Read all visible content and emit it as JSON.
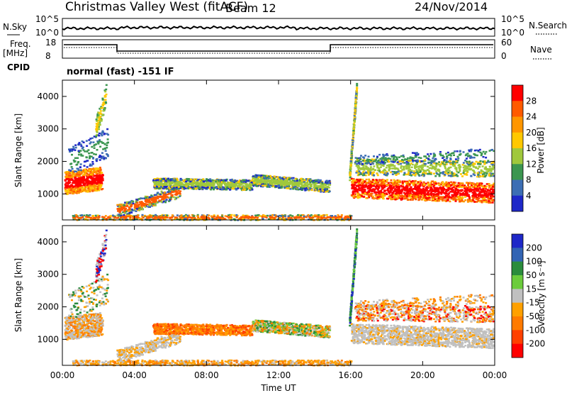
{
  "header": {
    "station": "Christmas Valley West (fitACF)",
    "beam": "Beam 12",
    "date": "24/Nov/2014"
  },
  "top_panels": {
    "nsky_label": "N.Sky",
    "nsky_ticks": [
      "10^5",
      "10^0"
    ],
    "nsearch_label": "N.Search",
    "nsearch_ticks": [
      "10^5",
      "10^0"
    ],
    "freq_label_1": "Freq.",
    "freq_label_2": "[MHz]",
    "freq_ticks": [
      "18",
      "8"
    ],
    "nave_label": "Nave",
    "nave_ticks": [
      "60",
      "0"
    ],
    "cpid_label": "CPID",
    "cpid_text": "normal (fast) -151 IF"
  },
  "chart_data": [
    {
      "type": "heatmap",
      "panel": "power",
      "ylabel": "Slant Range [km]",
      "xlabel": "Time UT",
      "yticks": [
        "1000",
        "2000",
        "3000",
        "4000"
      ],
      "xticks": [
        "00:00",
        "04:00",
        "08:00",
        "12:00",
        "16:00",
        "20:00",
        "00:00"
      ],
      "ylim": [
        200,
        4500
      ],
      "xlim": [
        0,
        24
      ],
      "colorbar_label": "Power [dB]",
      "colorbar_ticks": [
        "28",
        "24",
        "20",
        "16",
        "12",
        "8",
        "4"
      ]
    },
    {
      "type": "heatmap",
      "panel": "velocity",
      "ylabel": "Slant Range [km]",
      "xlabel": "Time UT",
      "yticks": [
        "1000",
        "2000",
        "3000",
        "4000"
      ],
      "xticks": [
        "00:00",
        "04:00",
        "08:00",
        "12:00",
        "16:00",
        "20:00",
        "00:00"
      ],
      "ylim": [
        200,
        4500
      ],
      "xlim": [
        0,
        24
      ],
      "colorbar_label": "Velocity [m s⁻¹]",
      "colorbar_ticks": [
        "200",
        "100",
        "50",
        "15",
        "-15",
        "-50",
        "-100",
        "-200"
      ]
    }
  ],
  "colors": {
    "power_scale": [
      "#ff0000",
      "#ff5a00",
      "#ff9600",
      "#ffc800",
      "#a0c83c",
      "#3c9650",
      "#3c6eb4",
      "#1e28c8"
    ],
    "velocity_scale": [
      "#1e28c8",
      "#3264b4",
      "#2a8c3c",
      "#6ccc3c",
      "#c0c0c0",
      "#ffa000",
      "#ff7a00",
      "#ff4000",
      "#ff0000"
    ]
  },
  "time_axis_title": "Time UT"
}
